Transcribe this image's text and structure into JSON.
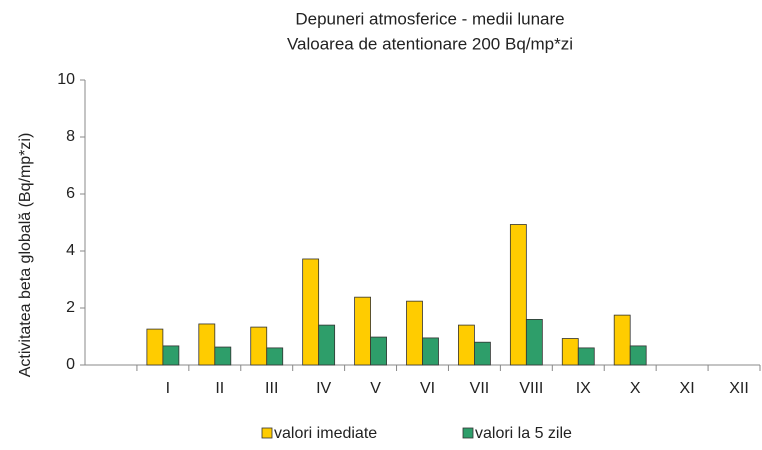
{
  "chart_data": {
    "type": "bar",
    "title": "Depuneri atmosferice - medii lunare",
    "subtitle": "Valoarea de atentionare 200 Bq/mp*zi",
    "y_label": "Activitatea beta globală (Bq/mp*zi)",
    "categories": [
      null,
      "I",
      "II",
      "III",
      "IV",
      "V",
      "VI",
      "VII",
      "VIII",
      "IX",
      "X",
      "XI",
      "XII"
    ],
    "series": [
      {
        "name": "valori imediate",
        "color": "#ffcc00",
        "values": [
          null,
          1.26,
          1.44,
          1.33,
          3.72,
          2.38,
          2.24,
          1.4,
          4.93,
          0.93,
          1.75,
          null,
          null
        ]
      },
      {
        "name": "valori la 5 zile",
        "color": "#2e9e6a",
        "values": [
          null,
          0.67,
          0.63,
          0.6,
          1.4,
          0.98,
          0.95,
          0.8,
          1.6,
          0.6,
          0.67,
          null,
          null
        ]
      }
    ],
    "ylim": [
      0,
      10
    ],
    "yticks": [
      0,
      2,
      4,
      6,
      8,
      10
    ],
    "grid": false,
    "legend": "bottom"
  }
}
